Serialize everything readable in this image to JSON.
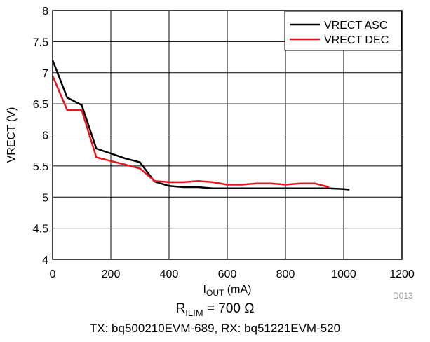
{
  "chart_data": {
    "type": "line",
    "xlabel": {
      "base": "I",
      "sub": "OUT",
      "rest": " (mA)"
    },
    "ylabel": "VRECT (V)",
    "xlim": [
      0,
      1200
    ],
    "ylim": [
      4,
      8
    ],
    "xticks": [
      0,
      200,
      400,
      600,
      800,
      1000,
      1200
    ],
    "yticks": [
      4,
      4.5,
      5,
      5.5,
      6,
      6.5,
      7,
      7.5,
      8
    ],
    "grid": true,
    "legend_position": "top-right",
    "series": [
      {
        "name": "VRECT ASC",
        "color": "#000000",
        "x": [
          0,
          50,
          100,
          150,
          200,
          250,
          300,
          350,
          400,
          450,
          500,
          550,
          600,
          650,
          700,
          750,
          800,
          850,
          900,
          950,
          1000,
          1020
        ],
        "y": [
          7.2,
          6.6,
          6.48,
          5.78,
          5.7,
          5.62,
          5.56,
          5.25,
          5.18,
          5.16,
          5.16,
          5.14,
          5.14,
          5.14,
          5.14,
          5.14,
          5.14,
          5.14,
          5.14,
          5.14,
          5.13,
          5.12
        ]
      },
      {
        "name": "VRECT DEC",
        "color": "#e8141b",
        "x": [
          0,
          50,
          100,
          150,
          200,
          250,
          300,
          350,
          400,
          450,
          500,
          550,
          600,
          650,
          700,
          750,
          800,
          850,
          900,
          950
        ],
        "y": [
          6.95,
          6.4,
          6.4,
          5.64,
          5.58,
          5.52,
          5.46,
          5.26,
          5.24,
          5.24,
          5.26,
          5.24,
          5.2,
          5.2,
          5.22,
          5.22,
          5.2,
          5.22,
          5.22,
          5.16
        ]
      }
    ]
  },
  "caption_line1": {
    "base": "R",
    "sub": "ILIM",
    "rest": " = 700 Ω"
  },
  "caption_line2": "TX: bq500210EVM-689, RX: bq51221EVM-520",
  "figure_id": "D013"
}
